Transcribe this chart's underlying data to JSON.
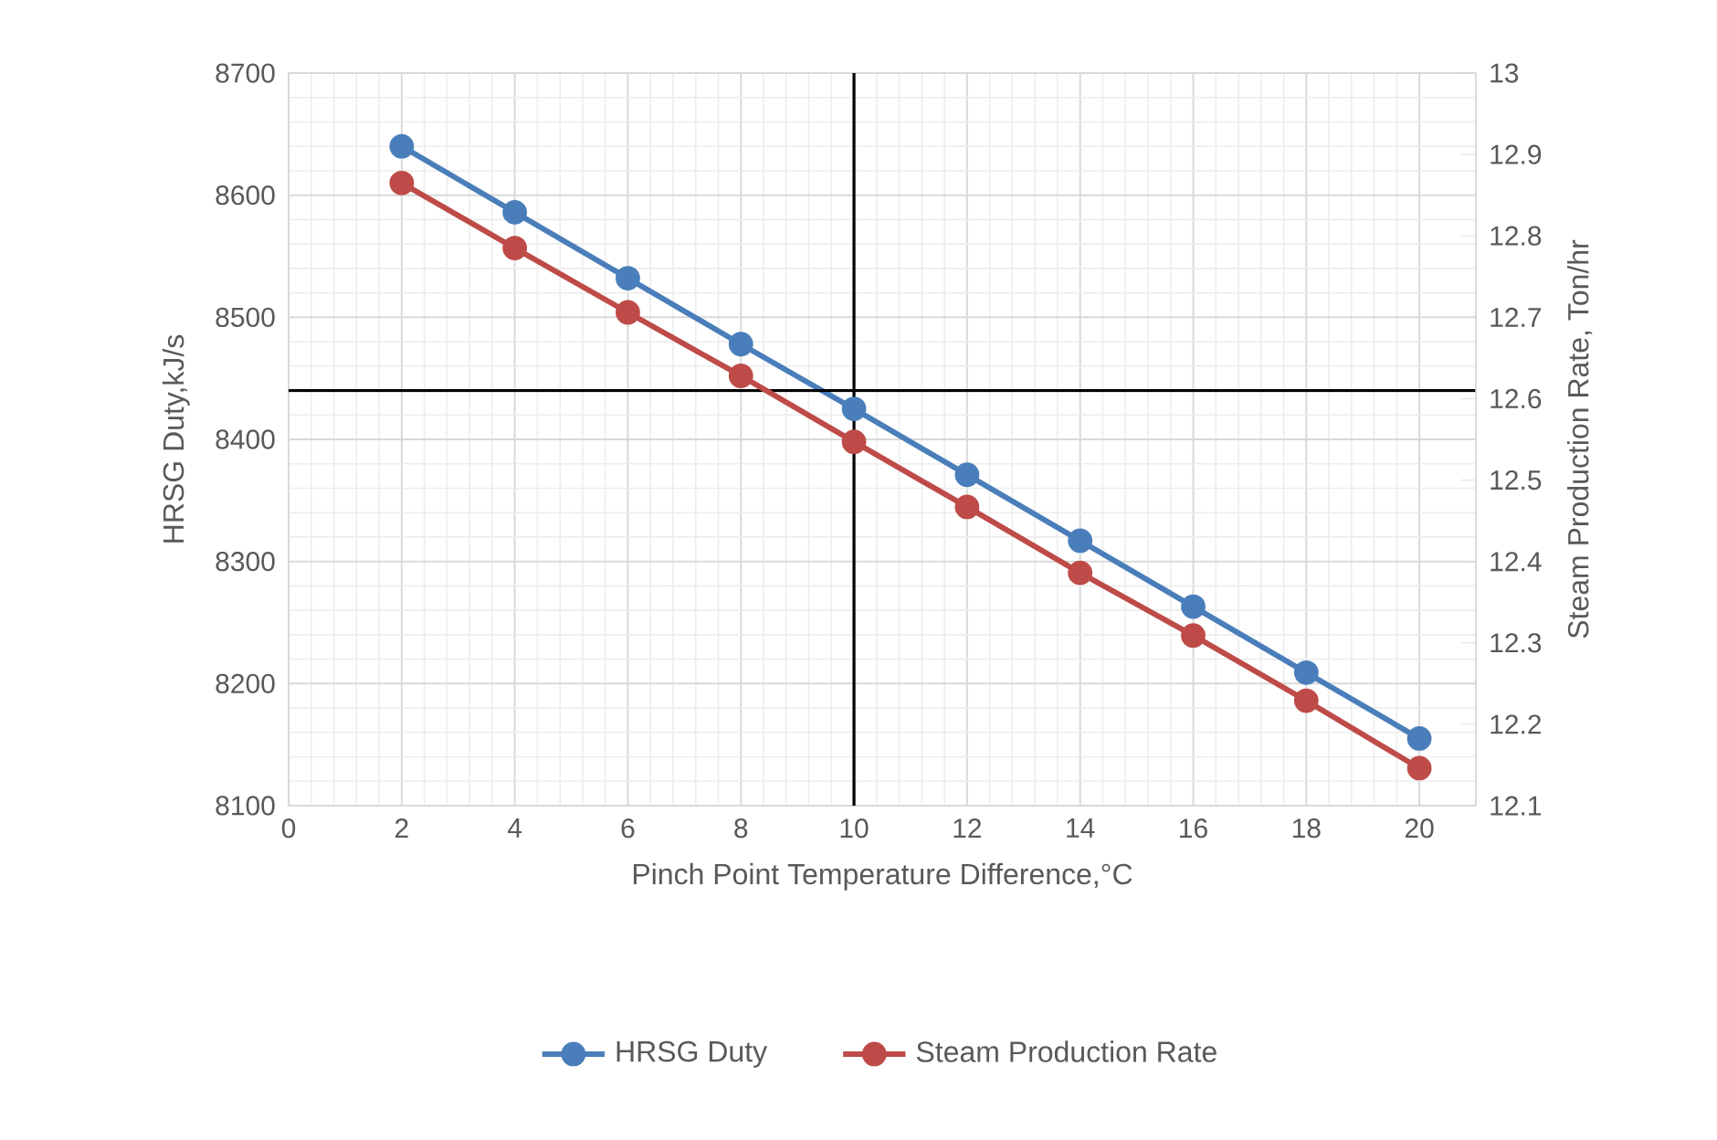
{
  "chart_data": {
    "type": "line",
    "xlabel": "Pinch Point Temperature  Difference,°C",
    "ylabel": "HRSG Duty,kJ/s",
    "y2label": "Steam Production Rate, Ton/hr",
    "x": [
      2,
      4,
      6,
      8,
      10,
      12,
      14,
      16,
      18,
      20
    ],
    "series": [
      {
        "name": "HRSG Duty",
        "color": "#4a7ebb",
        "values": [
          8640,
          8586,
          8532,
          8478,
          8425,
          8371,
          8317,
          8263,
          8209,
          8155
        ]
      },
      {
        "name": "Steam Production Rate",
        "color": "#be4b48",
        "axis": "y2",
        "values": [
          12.865,
          12.785,
          12.706,
          12.628,
          12.547,
          12.467,
          12.386,
          12.309,
          12.229,
          12.146
        ]
      }
    ],
    "xlim": [
      0,
      21
    ],
    "xticks": [
      0,
      2,
      4,
      6,
      8,
      10,
      12,
      14,
      16,
      18,
      20
    ],
    "ylim": [
      8100,
      8700
    ],
    "yticks": [
      8100,
      8200,
      8300,
      8400,
      8500,
      8600,
      8700
    ],
    "y2lim": [
      12.1,
      13
    ],
    "y2ticks": [
      12.1,
      12.2,
      12.3,
      12.4,
      12.5,
      12.6,
      12.7,
      12.8,
      12.9,
      13
    ],
    "ref_lines": [
      {
        "axis": "x",
        "value": 10,
        "color": "#000000"
      },
      {
        "axis": "y",
        "value": 8440,
        "color": "#000000"
      }
    ],
    "grid": true,
    "legend": "bottom",
    "marker": "circle",
    "line_style": "solid"
  }
}
